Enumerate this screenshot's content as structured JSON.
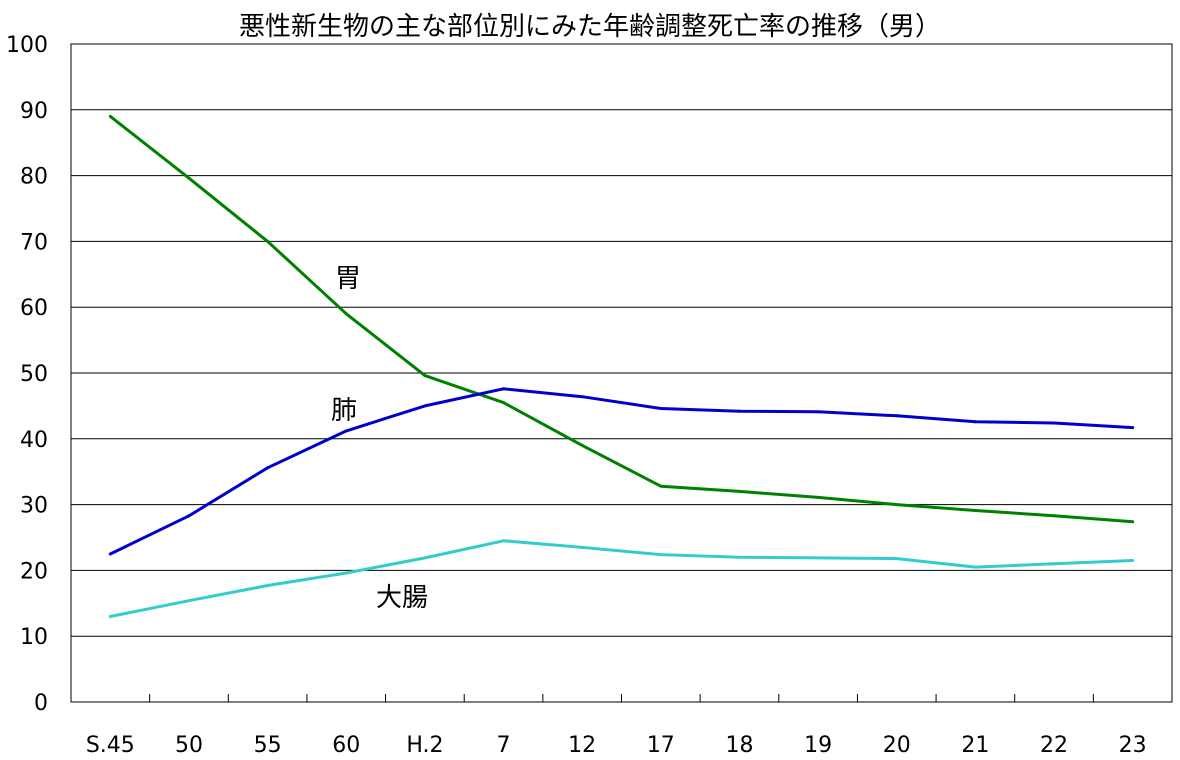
{
  "chart_data": {
    "type": "line",
    "title": "悪性新生物の主な部位別にみた年齢調整死亡率の推移（男）",
    "xlabel": "",
    "ylabel": "",
    "ylim": [
      0,
      100
    ],
    "yticks": [
      0,
      10,
      20,
      30,
      40,
      50,
      60,
      70,
      80,
      90,
      100
    ],
    "grid": true,
    "categories": [
      "S.45",
      "50",
      "55",
      "60",
      "H.2",
      "7",
      "12",
      "17",
      "18",
      "19",
      "20",
      "21",
      "22",
      "23"
    ],
    "series": [
      {
        "name": "胃",
        "color": "#008000",
        "values": [
          89.0,
          79.6,
          70.0,
          59.0,
          49.6,
          45.5,
          39.0,
          32.8,
          32.0,
          31.1,
          30.0,
          29.1,
          28.3,
          27.4
        ]
      },
      {
        "name": "肺",
        "color": "#0000cc",
        "values": [
          22.5,
          28.3,
          35.6,
          41.2,
          45.0,
          47.6,
          46.4,
          44.6,
          44.2,
          44.1,
          43.5,
          42.6,
          42.4,
          41.7
        ]
      },
      {
        "name": "大腸",
        "color": "#33cccc",
        "values": [
          13.0,
          15.4,
          17.7,
          19.6,
          21.9,
          24.5,
          23.5,
          22.4,
          22.0,
          21.9,
          21.8,
          20.5,
          21.0,
          21.5
        ]
      }
    ]
  }
}
